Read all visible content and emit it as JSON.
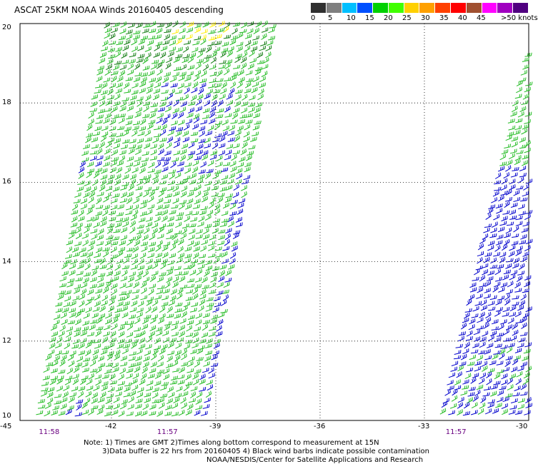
{
  "header": {
    "title": "ASCAT 25KM NOAA Winds 20160405 descending"
  },
  "legend": {
    "colors": [
      "#303030",
      "#7f7f7f",
      "#00bfff",
      "#0050ff",
      "#00d000",
      "#40ff00",
      "#ffd000",
      "#ffa000",
      "#ff4000",
      "#ff0000",
      "#a05030",
      "#ff00ff",
      "#a000c0",
      "#500080"
    ],
    "labels": [
      {
        "text": "0",
        "slot": 0
      },
      {
        "text": "5",
        "slot": 1
      },
      {
        "text": "10",
        "slot": 2
      },
      {
        "text": "15",
        "slot": 3
      },
      {
        "text": "20",
        "slot": 4
      },
      {
        "text": "25",
        "slot": 5
      },
      {
        "text": "30",
        "slot": 6
      },
      {
        "text": "35",
        "slot": 7
      },
      {
        "text": "40",
        "slot": 8
      },
      {
        "text": "45",
        "slot": 9
      },
      {
        "text": ">50 knots",
        "slot": 10
      }
    ]
  },
  "map": {
    "lon_range": [
      -45,
      -30
    ],
    "lat_range": [
      10,
      20
    ],
    "lon_ticks": [
      "-45",
      "-42",
      "-39",
      "-36",
      "-33",
      "-30"
    ],
    "lat_ticks": [
      "20",
      "18",
      "16",
      "14",
      "12",
      "10"
    ],
    "grid_lons": [
      -42,
      -39,
      -36,
      -33
    ],
    "grid_lats": [
      18,
      16,
      14,
      12
    ],
    "swath_colors": {
      "green": "#22bb22",
      "dark_green": "#0e7a0e",
      "blue": "#0000cc",
      "yellow": "#ffee00"
    }
  },
  "times": [
    {
      "text": "11:58",
      "lon": -43.8
    },
    {
      "text": "11:57",
      "lon": -40.4
    },
    {
      "text": "11:57",
      "lon": -32.1
    }
  ],
  "notes": {
    "line1": "Note: 1) Times are GMT 2)Times along bottom correspond to measurement at 15N",
    "line2": "3)Data buffer is 22 hrs from 20160405 4) Black wind barbs indicate possible contamination",
    "line3": "NOAA/NESDIS/Center for Satellite Applications and Research"
  }
}
